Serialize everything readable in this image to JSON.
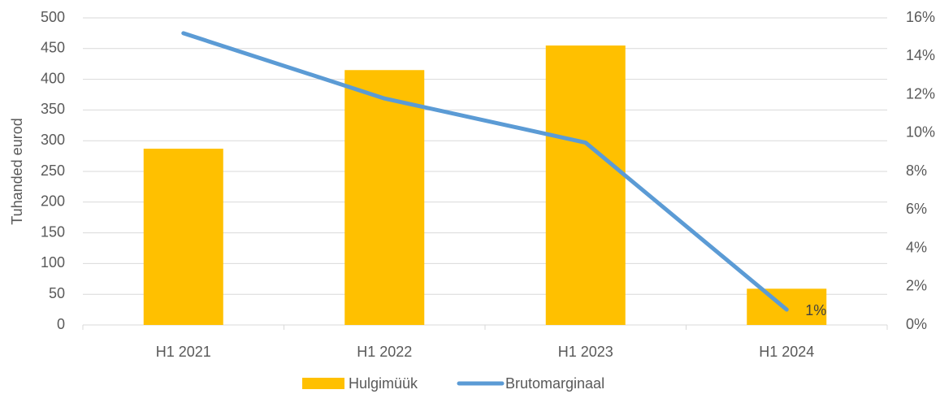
{
  "chart_data": {
    "type": "bar_line",
    "y_label": "Tuhanded eurod",
    "categories": [
      "H1 2021",
      "H1 2022",
      "H1 2023",
      "H1 2024"
    ],
    "series": [
      {
        "name": "Hulgimüük",
        "type": "bar",
        "color": "#ffc000",
        "values": [
          287,
          415,
          455,
          59
        ]
      },
      {
        "name": "Brutomarginaal",
        "type": "line",
        "axis": "y2",
        "color": "#5b9bd5",
        "values": [
          15.2,
          11.8,
          9.5,
          0.8
        ],
        "value_labels": [
          null,
          null,
          null,
          "1%"
        ]
      }
    ],
    "ylim": [
      0,
      500
    ],
    "yticks": [
      0,
      50,
      100,
      150,
      200,
      250,
      300,
      350,
      400,
      450,
      500
    ],
    "y2lim": [
      0,
      16
    ],
    "y2ticks": [
      {
        "value": 0,
        "label": "0%"
      },
      {
        "value": 2,
        "label": "2%"
      },
      {
        "value": 4,
        "label": "4%"
      },
      {
        "value": 6,
        "label": "6%"
      },
      {
        "value": 8,
        "label": "8%"
      },
      {
        "value": 10,
        "label": "10%"
      },
      {
        "value": 12,
        "label": "12%"
      },
      {
        "value": 14,
        "label": "14%"
      },
      {
        "value": 16,
        "label": "16%"
      }
    ],
    "grid": true,
    "legend": "bottom"
  }
}
